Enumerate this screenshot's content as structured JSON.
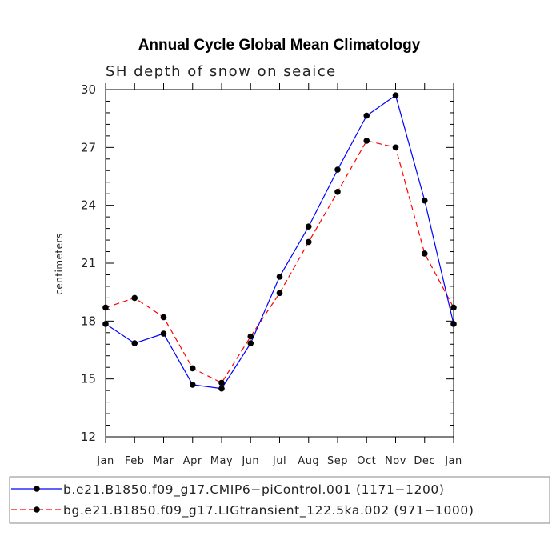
{
  "chart_data": {
    "type": "line",
    "title": "Annual Cycle Global Mean Climatology",
    "subtitle": "SH depth of snow on seaice",
    "xlabel": "",
    "ylabel": "centimeters",
    "categories": [
      "Jan",
      "Feb",
      "Mar",
      "Apr",
      "May",
      "Jun",
      "Jul",
      "Aug",
      "Sep",
      "Oct",
      "Nov",
      "Dec",
      "Jan"
    ],
    "ylim": [
      12,
      30
    ],
    "yticks": [
      12,
      15,
      18,
      21,
      24,
      27,
      30
    ],
    "grid": false,
    "legend_position": "bottom",
    "series": [
      {
        "name": "b.e21.B1850.f09_g17.CMIP6−piControl.001 (1171−1200)",
        "color": "#0000ff",
        "line_style": "solid",
        "marker": "filled-circle",
        "values": [
          17.85,
          16.85,
          17.35,
          14.7,
          14.5,
          16.85,
          20.3,
          22.9,
          25.85,
          28.65,
          29.7,
          24.25,
          17.85
        ]
      },
      {
        "name": "bg.e21.B1850.f09_g17.LIGtransient_122.5ka.002 (971−1000)",
        "color": "#ff0000",
        "line_style": "dashed",
        "marker": "filled-circle",
        "values": [
          18.7,
          19.2,
          18.2,
          15.55,
          14.8,
          17.2,
          19.45,
          22.1,
          24.7,
          27.35,
          27.0,
          21.5,
          18.7
        ]
      }
    ]
  }
}
